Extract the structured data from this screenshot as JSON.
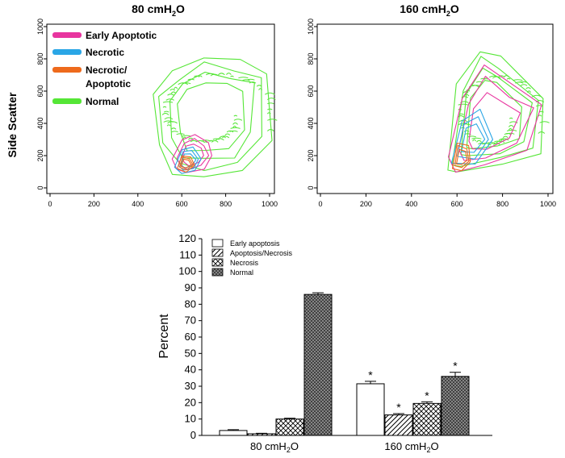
{
  "colors": {
    "early_apoptotic": "#e8359f",
    "necrotic": "#2aa6e6",
    "necrotic_apoptotic": "#ee6a1c",
    "normal": "#55e636"
  },
  "chart_data": [
    {
      "type": "scatter",
      "title": "80 cmH₂O",
      "title_main": "80 cmH",
      "title_sub": "2",
      "title_end": "O",
      "ylabel": "Side Scatter",
      "xlabel": "",
      "xlim": [
        0,
        1000
      ],
      "ylim": [
        0,
        1000
      ],
      "xticks": [
        0,
        200,
        400,
        600,
        800,
        1000
      ],
      "yticks": [
        0,
        200,
        400,
        600,
        800,
        1000
      ],
      "legend": {
        "placement": "top-left",
        "entries": [
          "Early Apoptotic",
          "Necrotic",
          "Necrotic/",
          "Apoptotic",
          "Normal"
        ]
      },
      "series": [
        {
          "name": "Early Apoptotic",
          "points": [
            [
              560,
              180
            ],
            [
              600,
              300
            ],
            [
              660,
              330
            ],
            [
              720,
              280
            ],
            [
              740,
              200
            ],
            [
              700,
              120
            ],
            [
              620,
              90
            ],
            [
              580,
              120
            ]
          ]
        },
        {
          "name": "Necrotic",
          "points": [
            [
              570,
              130
            ],
            [
              600,
              240
            ],
            [
              650,
              250
            ],
            [
              690,
              180
            ],
            [
              660,
              110
            ],
            [
              600,
              90
            ]
          ]
        },
        {
          "name": "Necrotic/Apoptotic",
          "points": [
            [
              580,
              120
            ],
            [
              600,
              200
            ],
            [
              640,
              190
            ],
            [
              660,
              140
            ],
            [
              620,
              100
            ]
          ]
        },
        {
          "name": "Normal",
          "points": [
            [
              470,
              580
            ],
            [
              560,
              720
            ],
            [
              700,
              820
            ],
            [
              860,
              780
            ],
            [
              1000,
              720
            ],
            [
              1000,
              300
            ],
            [
              880,
              100
            ],
            [
              700,
              70
            ],
            [
              560,
              90
            ],
            [
              490,
              260
            ]
          ]
        }
      ]
    },
    {
      "type": "scatter",
      "title": "160 cmH₂O",
      "title_main": "160 cmH",
      "title_sub": "2",
      "title_end": "O",
      "ylabel": "",
      "xlabel": "",
      "xlim": [
        0,
        1000
      ],
      "ylim": [
        0,
        1000
      ],
      "xticks": [
        0,
        200,
        400,
        600,
        800,
        1000
      ],
      "yticks": [
        0,
        200,
        400,
        600,
        800,
        1000
      ],
      "series": [
        {
          "name": "Early Apoptotic",
          "points": [
            [
              570,
              200
            ],
            [
              620,
              560
            ],
            [
              720,
              760
            ],
            [
              860,
              620
            ],
            [
              980,
              520
            ],
            [
              900,
              240
            ],
            [
              720,
              130
            ],
            [
              600,
              110
            ]
          ]
        },
        {
          "name": "Necrotic",
          "points": [
            [
              580,
              160
            ],
            [
              620,
              420
            ],
            [
              700,
              480
            ],
            [
              760,
              300
            ],
            [
              680,
              150
            ]
          ]
        },
        {
          "name": "Necrotic/Apoptotic",
          "points": [
            [
              580,
              120
            ],
            [
              600,
              280
            ],
            [
              650,
              260
            ],
            [
              660,
              160
            ],
            [
              620,
              110
            ]
          ]
        },
        {
          "name": "Normal",
          "points": [
            [
              560,
              110
            ],
            [
              600,
              640
            ],
            [
              700,
              860
            ],
            [
              790,
              800
            ],
            [
              990,
              560
            ],
            [
              960,
              220
            ],
            [
              800,
              140
            ],
            [
              600,
              100
            ]
          ]
        }
      ]
    },
    {
      "type": "bar",
      "categories": [
        "80  cmH2O",
        "160  cmH2O"
      ],
      "category_main": [
        "80  cmH",
        "160  cmH"
      ],
      "category_sub": "2",
      "category_end": "O",
      "ylabel": "Percent",
      "xlabel": "",
      "ylim": [
        0,
        120
      ],
      "yticks": [
        0,
        10,
        20,
        30,
        40,
        50,
        60,
        70,
        80,
        90,
        100,
        110,
        120
      ],
      "legend": {
        "placement": "top-left",
        "entries": [
          "Early apoptosis",
          "Apoptosis/Necrosis",
          "Necrosis",
          "Normal"
        ]
      },
      "series": [
        {
          "name": "Early apoptosis",
          "values": [
            3,
            31.5
          ],
          "errors": [
            0.5,
            1.5
          ],
          "significant": [
            false,
            true
          ]
        },
        {
          "name": "Apoptosis/Necrosis",
          "values": [
            1,
            12.5
          ],
          "errors": [
            0.3,
            0.8
          ],
          "significant": [
            false,
            true
          ]
        },
        {
          "name": "Necrosis",
          "values": [
            10,
            19.5
          ],
          "errors": [
            0.5,
            1.0
          ],
          "significant": [
            false,
            true
          ]
        },
        {
          "name": "Normal",
          "values": [
            86,
            36
          ],
          "errors": [
            1.0,
            2.5
          ],
          "significant": [
            false,
            true
          ]
        }
      ],
      "annotation": "*"
    }
  ]
}
